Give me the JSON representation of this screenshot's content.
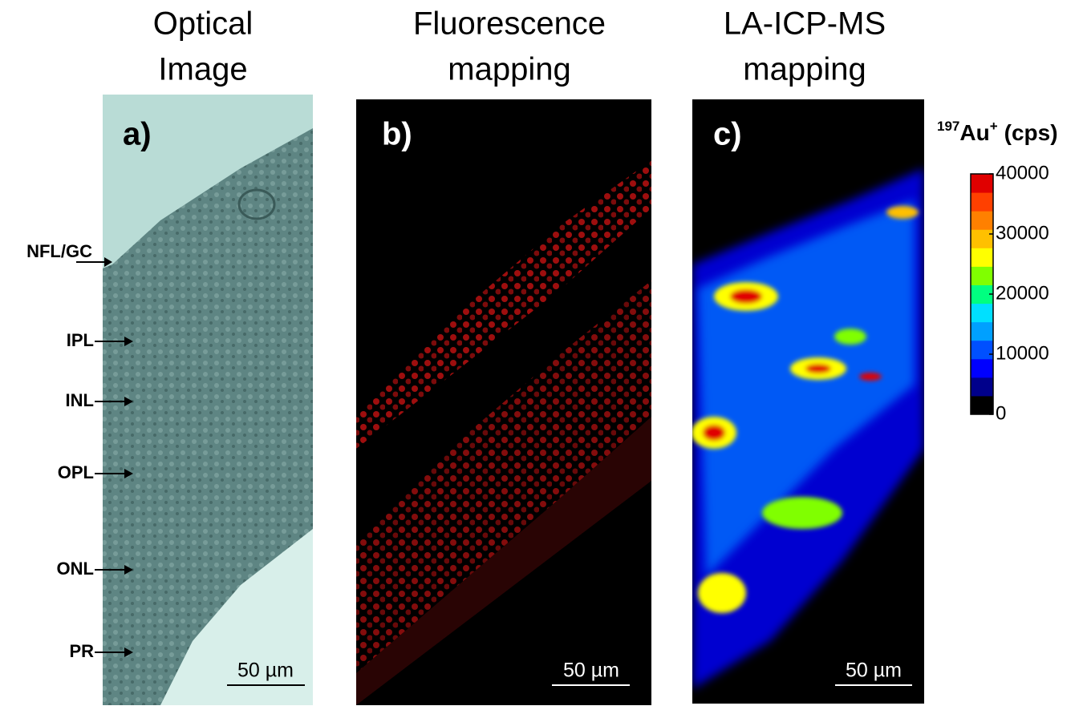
{
  "panels": [
    {
      "title_line1": "Optical",
      "title_line2": "Image",
      "label": "a)",
      "scale_bar": "50 µm"
    },
    {
      "title_line1": "Fluorescence",
      "title_line2": "mapping",
      "label": "b)",
      "scale_bar": "50 µm"
    },
    {
      "title_line1": "LA-ICP-MS",
      "title_line2": "mapping",
      "label": "c)",
      "scale_bar": "50 µm"
    }
  ],
  "layer_labels": [
    "NFL/GC",
    "IPL",
    "INL",
    "OPL",
    "ONL",
    "PR"
  ],
  "colorbar": {
    "isotope_mass": "197",
    "element": "Au",
    "charge": "+",
    "unit": "(cps)",
    "lim": [
      0,
      40000
    ],
    "ticks": [
      0,
      10000,
      20000,
      30000,
      40000
    ],
    "colors": [
      "#000000",
      "#00008b",
      "#0000ff",
      "#0050ff",
      "#00a0ff",
      "#00e0ff",
      "#00ff80",
      "#80ff00",
      "#ffff00",
      "#ffc000",
      "#ff8000",
      "#ff4000",
      "#e00000"
    ]
  }
}
